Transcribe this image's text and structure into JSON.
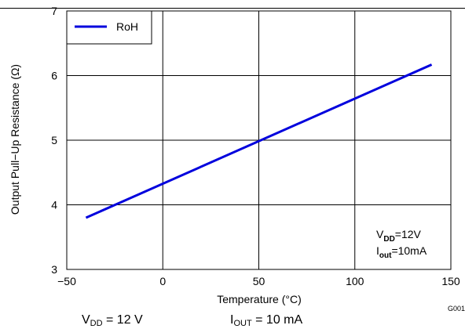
{
  "chart_data": {
    "type": "line",
    "title": "",
    "xlabel": "Temperature (°C)",
    "ylabel": "Output Pull−Up Resistance (Ω)",
    "xlim": [
      -50,
      150
    ],
    "ylim": [
      3,
      7
    ],
    "xticks": [
      "−50",
      "0",
      "50",
      "100",
      "150"
    ],
    "yticks": [
      "3",
      "4",
      "5",
      "6",
      "7"
    ],
    "grid": true,
    "legend_position": "top-left",
    "series": [
      {
        "name": "RoH",
        "color": "#0000dd",
        "x": [
          -40,
          140
        ],
        "y": [
          3.8,
          6.17
        ]
      }
    ],
    "annotation": {
      "vdd_main": "V",
      "vdd_sub": "DD",
      "vdd_value": "=12V",
      "iout_main": "I",
      "iout_sub": "out",
      "iout_value": "=10mA"
    },
    "figure_code": "G001"
  },
  "caption": {
    "vdd_main": "V",
    "vdd_sub": "DD",
    "vdd_value": " = 12 V",
    "iout_main": "I",
    "iout_sub": "OUT",
    "iout_value": " = 10 mA"
  }
}
